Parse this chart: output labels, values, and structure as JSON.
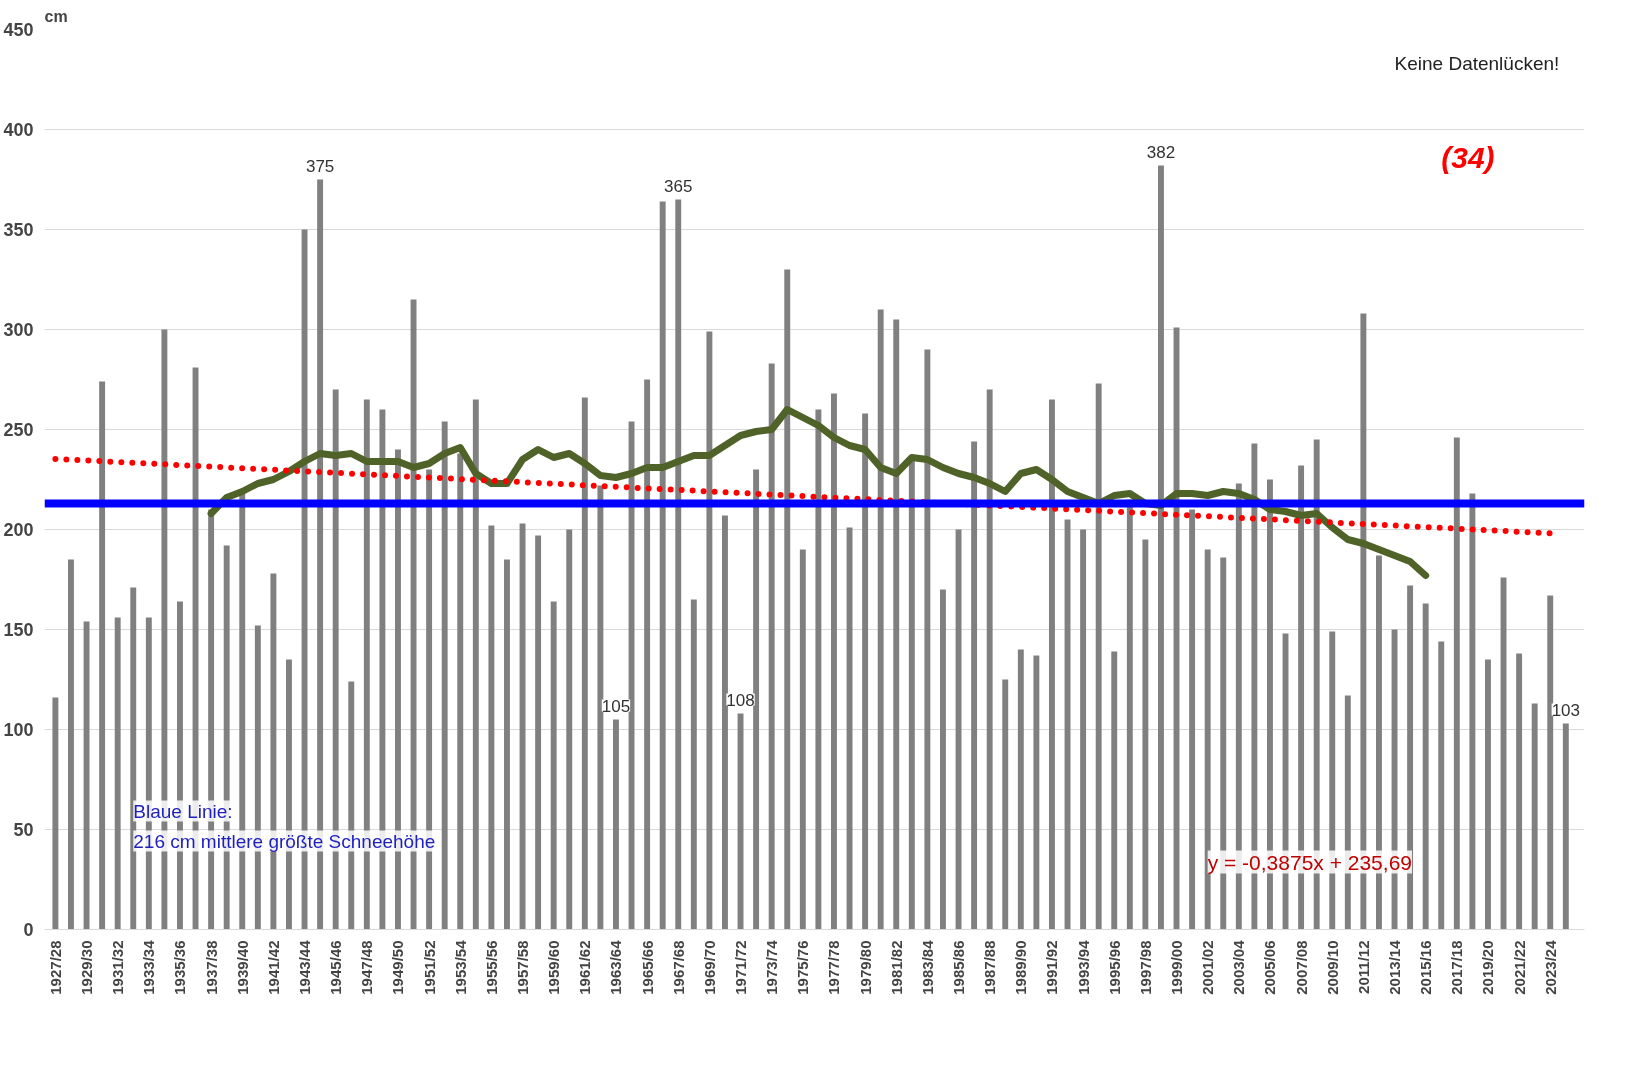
{
  "chart_data": {
    "type": "bar",
    "ylabel": "cm",
    "categories": [
      "1927/28",
      null,
      "1929/30",
      null,
      "1931/32",
      null,
      "1933/34",
      null,
      "1935/36",
      null,
      "1937/38",
      null,
      "1939/40",
      null,
      "1941/42",
      null,
      "1943/44",
      null,
      "1945/46",
      null,
      "1947/48",
      null,
      "1949/50",
      null,
      "1951/52",
      null,
      "1953/54",
      null,
      "1955/56",
      null,
      "1957/58",
      null,
      "1959/60",
      null,
      "1961/62",
      null,
      "1963/64",
      null,
      "1965/66",
      null,
      "1967/68",
      null,
      "1969/70",
      null,
      "1971/72",
      null,
      "1973/74",
      null,
      "1975/76",
      null,
      "1977/78",
      null,
      "1979/80",
      null,
      "1981/82",
      null,
      "1983/84",
      null,
      "1985/86",
      null,
      "1987/88",
      null,
      "1989/90",
      null,
      "1991/92",
      null,
      "1993/94",
      null,
      "1995/96",
      null,
      "1997/98",
      null,
      "1999/00",
      null,
      "2001/02",
      null,
      "2003/04",
      null,
      "2005/06",
      null,
      "2007/08",
      null,
      "2009/10",
      null,
      "2011/12",
      null,
      "2013/14",
      null,
      "2015/16",
      null,
      "2017/18",
      null,
      "2019/20",
      null,
      "2021/22",
      null,
      "2023/24",
      null
    ],
    "series": [
      {
        "color": "#808080",
        "values": [
          116,
          185,
          154,
          274,
          156,
          171,
          156,
          300,
          164,
          281,
          210,
          192,
          218,
          152,
          178,
          135,
          350,
          375,
          270,
          124,
          265,
          260,
          240,
          315,
          230,
          254,
          238,
          265,
          202,
          185,
          203,
          197,
          164,
          200,
          266,
          222,
          105,
          254,
          275,
          364,
          365,
          165,
          299,
          207,
          108,
          230,
          283,
          330,
          190,
          260,
          268,
          201,
          258,
          310,
          305,
          235,
          290,
          170,
          200,
          244,
          270,
          125,
          140,
          137,
          265,
          205,
          200,
          273,
          139,
          215,
          195,
          382,
          301,
          210,
          190,
          186,
          223,
          243,
          225,
          148,
          232,
          245,
          149,
          117,
          308,
          187,
          150,
          172,
          163,
          144,
          246,
          218,
          135,
          176,
          138,
          113,
          167,
          103
        ],
        "value_labels": [
          null,
          null,
          null,
          null,
          null,
          null,
          null,
          null,
          null,
          null,
          null,
          null,
          null,
          null,
          null,
          null,
          null,
          "375",
          null,
          null,
          null,
          null,
          null,
          null,
          null,
          null,
          null,
          null,
          null,
          null,
          null,
          null,
          null,
          null,
          null,
          null,
          "105",
          null,
          null,
          null,
          "365",
          null,
          null,
          null,
          "108",
          null,
          null,
          null,
          null,
          null,
          null,
          null,
          null,
          null,
          null,
          null,
          null,
          null,
          null,
          null,
          null,
          null,
          null,
          null,
          null,
          null,
          null,
          null,
          null,
          null,
          null,
          "382",
          null,
          null,
          null,
          null,
          null,
          null,
          null,
          null,
          null,
          null,
          null,
          null,
          null,
          null,
          null,
          null,
          null,
          null,
          null,
          null,
          null,
          null,
          null,
          null,
          null,
          "103"
        ]
      },
      {
        "type": "line",
        "color": "#4f6228",
        "line_style": "solid",
        "values": [
          null,
          null,
          null,
          null,
          null,
          null,
          null,
          null,
          null,
          null,
          208,
          216,
          219,
          223,
          225,
          229,
          234,
          238,
          237,
          238,
          234,
          234,
          234,
          231,
          233,
          238,
          241,
          228,
          223,
          223,
          235,
          240,
          236,
          238,
          233,
          227,
          226,
          228,
          231,
          231,
          234,
          237,
          237,
          242,
          247,
          249,
          250,
          260,
          256,
          252,
          246,
          242,
          240,
          231,
          228,
          236,
          235,
          231,
          228,
          226,
          223,
          219,
          228,
          230,
          225,
          219,
          216,
          213,
          217,
          218,
          213,
          212,
          218,
          218,
          217,
          219,
          218,
          215,
          210,
          209,
          207,
          208,
          201,
          195,
          193,
          190,
          187,
          184,
          177,
          null,
          null,
          null,
          null,
          null,
          null,
          null,
          null,
          null
        ]
      },
      {
        "type": "line",
        "color": "#ff0000",
        "line_style": "dotted",
        "x": [
          "1927/28",
          "2023/24"
        ],
        "values": [
          235.3,
          198.1
        ]
      }
    ],
    "ref_lines": [
      {
        "axis": "y",
        "value": 213,
        "color": "#0000ff"
      }
    ],
    "annotations": [
      "Keine Datenlücken!",
      "(34)",
      "y = -0,3875x + 235,69",
      "Blaue Linie:",
      "216 cm mittlere größte Schneehöhe"
    ],
    "ylim": [
      0,
      450
    ],
    "yticks": [
      0,
      50,
      100,
      150,
      200,
      250,
      300,
      350,
      400,
      450
    ],
    "grid": "y"
  }
}
